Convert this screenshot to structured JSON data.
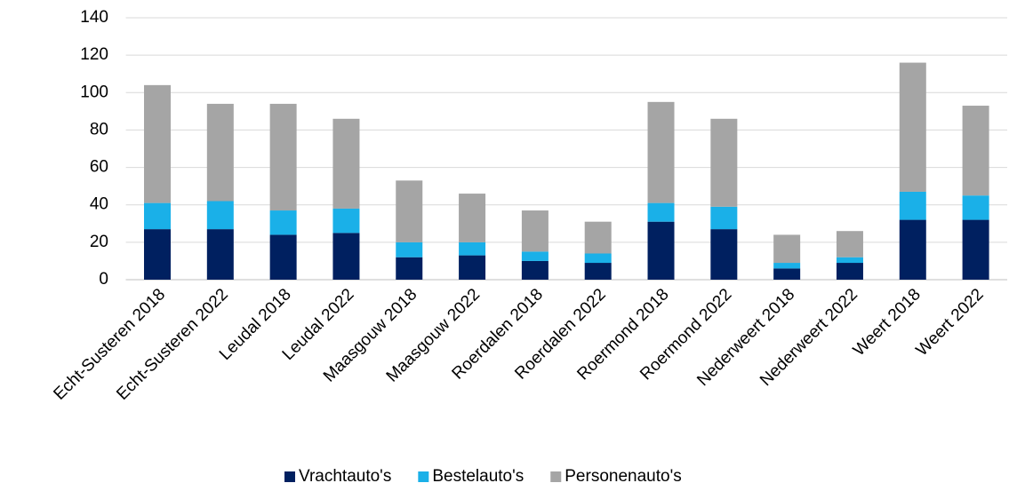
{
  "chart_data": {
    "type": "stacked_bar",
    "categories": [
      "Echt-Susteren 2018",
      "Echt-Susteren 2022",
      "Leudal 2018",
      "Leudal 2022",
      "Maasgouw 2018",
      "Maasgouw 2022",
      "Roerdalen 2018",
      "Roerdalen 2022",
      "Roermond 2018",
      "Roermond 2022",
      "Nederweert 2018",
      "Nederweert 2022",
      "Weert 2018",
      "Weert 2022"
    ],
    "series": [
      {
        "name": "Vrachtauto's",
        "color": "#002060",
        "values": [
          27,
          27,
          24,
          25,
          12,
          13,
          10,
          9,
          31,
          27,
          6,
          9,
          32,
          32
        ]
      },
      {
        "name": "Bestelauto's",
        "color": "#1ab0e8",
        "values": [
          14,
          15,
          13,
          13,
          8,
          7,
          5,
          5,
          10,
          12,
          3,
          3,
          15,
          13
        ]
      },
      {
        "name": "Personenauto's",
        "color": "#a5a5a5",
        "values": [
          63,
          52,
          57,
          48,
          33,
          26,
          22,
          17,
          54,
          47,
          15,
          14,
          69,
          48
        ]
      }
    ],
    "ylim": [
      0,
      140
    ],
    "yticks": [
      0,
      20,
      40,
      60,
      80,
      100,
      120,
      140
    ],
    "grid": true,
    "legend": "bottom"
  }
}
